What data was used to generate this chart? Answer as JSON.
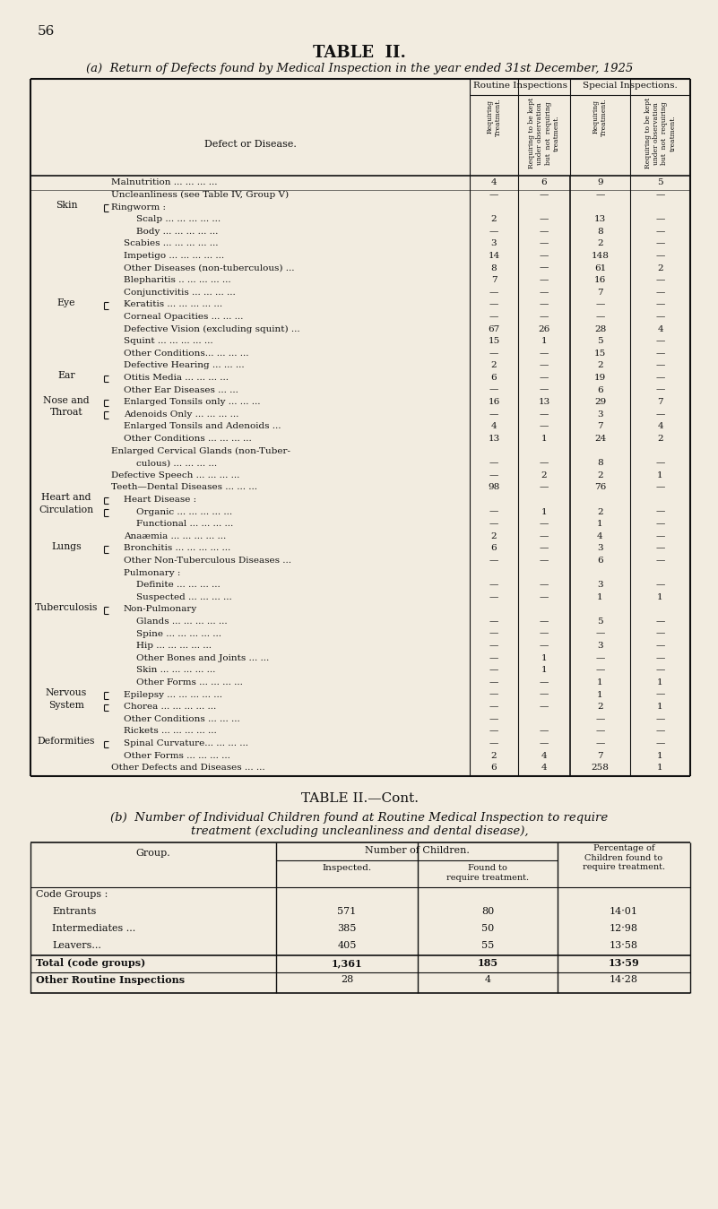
{
  "page_num": "56",
  "title": "TABLE  II.",
  "subtitle_a": "(a)  Return of Defects found by Medical Inspection in the year ended 31st December, 1925",
  "bg_color": "#f2ece0",
  "text_color": "#111111",
  "line_color": "#111111",
  "col_headers_sub": [
    "Requiring\nTreatment.",
    "Requiring to be kept\nunder observation\nbut  not  requiring\ntreatment.",
    "Requiring\nTreatment.",
    "Requiring to be kept\nunder observation\nbut  not  requiring\ntreatment."
  ],
  "rows_a": [
    {
      "cat": "",
      "lbl": "Malnutrition ... ... ... ...",
      "ind": 0,
      "v1": "4",
      "v2": "6",
      "v3": "9",
      "v4": "5"
    },
    {
      "cat": "",
      "lbl": "Uncleanliness (see Table IV, Group V)",
      "ind": 0,
      "v1": "—",
      "v2": "—",
      "v3": "—",
      "v4": "—"
    },
    {
      "cat": "Skin",
      "lbl": "Ringworm :",
      "ind": 0,
      "v1": "",
      "v2": "",
      "v3": "",
      "v4": ""
    },
    {
      "cat": "",
      "lbl": "Scalp ... ... ... ... ...",
      "ind": 2,
      "v1": "2",
      "v2": "—",
      "v3": "13",
      "v4": "—"
    },
    {
      "cat": "",
      "lbl": "Body ... ... ... ... ...",
      "ind": 2,
      "v1": "—",
      "v2": "—",
      "v3": "8",
      "v4": "—"
    },
    {
      "cat": "",
      "lbl": "Scabies ... ... ... ... ...",
      "ind": 1,
      "v1": "3",
      "v2": "—",
      "v3": "2",
      "v4": "—"
    },
    {
      "cat": "",
      "lbl": "Impetigo ... ... ... ... ...",
      "ind": 1,
      "v1": "14",
      "v2": "—",
      "v3": "148",
      "v4": "—"
    },
    {
      "cat": "",
      "lbl": "Other Diseases (non-tuberculous) ...",
      "ind": 1,
      "v1": "8",
      "v2": "—",
      "v3": "61",
      "v4": "2"
    },
    {
      "cat": "",
      "lbl": "Blepharitis .. ... ... ... ...",
      "ind": 1,
      "v1": "7",
      "v2": "—",
      "v3": "16",
      "v4": "—"
    },
    {
      "cat": "",
      "lbl": "Conjunctivitis ... ... ... ...",
      "ind": 1,
      "v1": "—",
      "v2": "—",
      "v3": "7",
      "v4": "—"
    },
    {
      "cat": "Eye",
      "lbl": "Keratitis ... ... ... ... ...",
      "ind": 1,
      "v1": "—",
      "v2": "—",
      "v3": "—",
      "v4": "—"
    },
    {
      "cat": "",
      "lbl": "Corneal Opacities ... ... ...",
      "ind": 1,
      "v1": "—",
      "v2": "—",
      "v3": "—",
      "v4": "—"
    },
    {
      "cat": "",
      "lbl": "Defective Vision (excluding squint) ...",
      "ind": 1,
      "v1": "67",
      "v2": "26",
      "v3": "28",
      "v4": "4"
    },
    {
      "cat": "",
      "lbl": "Squint ... ... ... ... ...",
      "ind": 1,
      "v1": "15",
      "v2": "1",
      "v3": "5",
      "v4": "—"
    },
    {
      "cat": "",
      "lbl": "Other Conditions... ... ... ...",
      "ind": 1,
      "v1": "—",
      "v2": "—",
      "v3": "15",
      "v4": "—"
    },
    {
      "cat": "",
      "lbl": "Defective Hearing ... ... ...",
      "ind": 1,
      "v1": "2",
      "v2": "—",
      "v3": "2",
      "v4": "—"
    },
    {
      "cat": "Ear",
      "lbl": "Otitis Media ... ... ... ...",
      "ind": 1,
      "v1": "6",
      "v2": "—",
      "v3": "19",
      "v4": "—"
    },
    {
      "cat": "",
      "lbl": "Other Ear Diseases ... ...",
      "ind": 1,
      "v1": "—",
      "v2": "—",
      "v3": "6",
      "v4": "—"
    },
    {
      "cat": "Nose and",
      "lbl": "Enlarged Tonsils only ... ... ...",
      "ind": 1,
      "v1": "16",
      "v2": "13",
      "v3": "29",
      "v4": "7"
    },
    {
      "cat": "Throat",
      "lbl": "Adenoids Only ... ... ... ...",
      "ind": 1,
      "v1": "—",
      "v2": "—",
      "v3": "3",
      "v4": "—"
    },
    {
      "cat": "",
      "lbl": "Enlarged Tonsils and Adenoids ...",
      "ind": 1,
      "v1": "4",
      "v2": "—",
      "v3": "7",
      "v4": "4"
    },
    {
      "cat": "",
      "lbl": "Other Conditions ... ... ... ...",
      "ind": 1,
      "v1": "13",
      "v2": "1",
      "v3": "24",
      "v4": "2"
    },
    {
      "cat": "",
      "lbl": "Enlarged Cervical Glands (non-Tuber-",
      "ind": 0,
      "v1": "",
      "v2": "",
      "v3": "",
      "v4": ""
    },
    {
      "cat": "",
      "lbl": "culous) ... ... ... ...",
      "ind": 2,
      "v1": "—",
      "v2": "—",
      "v3": "8",
      "v4": "—"
    },
    {
      "cat": "",
      "lbl": "Defective Speech ... ... ... ...",
      "ind": 0,
      "v1": "—",
      "v2": "2",
      "v3": "2",
      "v4": "1"
    },
    {
      "cat": "",
      "lbl": "Teeth—Dental Diseases ... ... ...",
      "ind": 0,
      "v1": "98",
      "v2": "—",
      "v3": "76",
      "v4": "—"
    },
    {
      "cat": "Heart and",
      "lbl": "Heart Disease :",
      "ind": 1,
      "v1": "",
      "v2": "",
      "v3": "",
      "v4": ""
    },
    {
      "cat": "Circulation",
      "lbl": "Organic ... ... ... ... ...",
      "ind": 2,
      "v1": "—",
      "v2": "1",
      "v3": "2",
      "v4": "—"
    },
    {
      "cat": "",
      "lbl": "Functional ... ... ... ...",
      "ind": 2,
      "v1": "—",
      "v2": "—",
      "v3": "1",
      "v4": "—"
    },
    {
      "cat": "",
      "lbl": "Anaæmia ... ... ... ... ...",
      "ind": 1,
      "v1": "2",
      "v2": "—",
      "v3": "4",
      "v4": "—"
    },
    {
      "cat": "Lungs",
      "lbl": "Bronchitis ... ... ... ... ...",
      "ind": 1,
      "v1": "6",
      "v2": "—",
      "v3": "3",
      "v4": "—"
    },
    {
      "cat": "",
      "lbl": "Other Non-Tuberculous Diseases ...",
      "ind": 1,
      "v1": "—",
      "v2": "—",
      "v3": "6",
      "v4": "—"
    },
    {
      "cat": "",
      "lbl": "Pulmonary :",
      "ind": 1,
      "v1": "",
      "v2": "",
      "v3": "",
      "v4": ""
    },
    {
      "cat": "",
      "lbl": "Definite ... ... ... ...",
      "ind": 2,
      "v1": "—",
      "v2": "—",
      "v3": "3",
      "v4": "—"
    },
    {
      "cat": "",
      "lbl": "Suspected ... ... ... ...",
      "ind": 2,
      "v1": "—",
      "v2": "—",
      "v3": "1",
      "v4": "1"
    },
    {
      "cat": "Tuberculosis",
      "lbl": "Non-Pulmonary",
      "ind": 1,
      "v1": "",
      "v2": "",
      "v3": "",
      "v4": ""
    },
    {
      "cat": "",
      "lbl": "Glands ... ... ... ... ...",
      "ind": 2,
      "v1": "—",
      "v2": "—",
      "v3": "5",
      "v4": "—"
    },
    {
      "cat": "",
      "lbl": "Spine ... ... ... ... ...",
      "ind": 2,
      "v1": "—",
      "v2": "—",
      "v3": "—",
      "v4": "—"
    },
    {
      "cat": "",
      "lbl": "Hip ... ... ... ... ...",
      "ind": 2,
      "v1": "—",
      "v2": "—",
      "v3": "3",
      "v4": "—"
    },
    {
      "cat": "",
      "lbl": "Other Bones and Joints ... ...",
      "ind": 2,
      "v1": "—",
      "v2": "1",
      "v3": "—",
      "v4": "—"
    },
    {
      "cat": "",
      "lbl": "Skin ... ... ... ... ...",
      "ind": 2,
      "v1": "—",
      "v2": "1",
      "v3": "—",
      "v4": "—"
    },
    {
      "cat": "",
      "lbl": "Other Forms ... ... ... ...",
      "ind": 2,
      "v1": "—",
      "v2": "—",
      "v3": "1",
      "v4": "1"
    },
    {
      "cat": "Nervous",
      "lbl": "Epilepsy ... ... ... ... ...",
      "ind": 1,
      "v1": "—",
      "v2": "—",
      "v3": "1",
      "v4": "—"
    },
    {
      "cat": "System",
      "lbl": "Chorea ... ... ... ... ...",
      "ind": 1,
      "v1": "—",
      "v2": "—",
      "v3": "2",
      "v4": "1"
    },
    {
      "cat": "",
      "lbl": "Other Conditions ... ... ...",
      "ind": 1,
      "v1": "—",
      "v2": "",
      "v3": "—",
      "v4": "—"
    },
    {
      "cat": "",
      "lbl": "Rickets ... ... ... ... ...",
      "ind": 1,
      "v1": "—",
      "v2": "—",
      "v3": "—",
      "v4": "—"
    },
    {
      "cat": "Deformities",
      "lbl": "Spinal Curvature... ... ... ...",
      "ind": 1,
      "v1": "—",
      "v2": "—",
      "v3": "—",
      "v4": "—"
    },
    {
      "cat": "",
      "lbl": "Other Forms ... ... ... ...",
      "ind": 1,
      "v1": "2",
      "v2": "4",
      "v3": "7",
      "v4": "1"
    },
    {
      "cat": "",
      "lbl": "Other Defects and Diseases ... ...",
      "ind": 0,
      "v1": "6",
      "v2": "4",
      "v3": "258",
      "v4": "1"
    }
  ],
  "table_b_rows": [
    {
      "lbl": "Code Groups :",
      "ind": 0,
      "i": "",
      "f": "",
      "p": ""
    },
    {
      "lbl": "Entrants",
      "ind": 1,
      "i": "571",
      "f": "80",
      "p": "14·01"
    },
    {
      "lbl": "Intermediates ...",
      "ind": 1,
      "i": "385",
      "f": "50",
      "p": "12·98"
    },
    {
      "lbl": "Leavers...",
      "ind": 1,
      "i": "405",
      "f": "55",
      "p": "13·58"
    }
  ],
  "table_b_total": {
    "lbl": "Total (code groups)",
    "i": "1,361",
    "f": "185",
    "p": "13·59"
  },
  "table_b_other": {
    "lbl": "Other Routine Inspections",
    "i": "28",
    "f": "4",
    "p": "14·28"
  },
  "subtitle_cont": "TABLE II.—Cont.",
  "subtitle_b_1": "(b)  Number of Individual Children found at Routine Medical Inspection to require",
  "subtitle_b_2": "treatment (excluding uncleanliness and dental disease),"
}
